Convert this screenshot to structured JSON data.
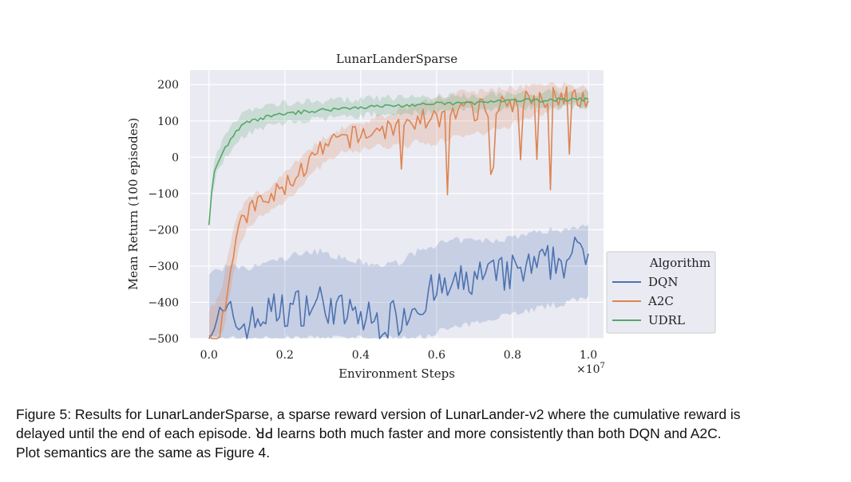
{
  "chart_data": {
    "type": "line",
    "title": "LunarLanderSparse",
    "xlabel": "Environment Steps",
    "x_multiplier_label": "×10",
    "x_multiplier_exp": "7",
    "ylabel": "Mean Return (100 episodes)",
    "xlim": [
      -0.05,
      1.04
    ],
    "ylim": [
      -500,
      240
    ],
    "xticks": [
      0.0,
      0.2,
      0.4,
      0.6,
      0.8,
      1.0
    ],
    "xtick_labels": [
      "0.0",
      "0.2",
      "0.4",
      "0.6",
      "0.8",
      "1.0"
    ],
    "yticks": [
      200,
      100,
      0,
      -100,
      -200,
      -300,
      -400,
      -500
    ],
    "ytick_labels": [
      "200",
      "100",
      "0",
      "−100",
      "−200",
      "−300",
      "−400",
      "−500"
    ],
    "grid": true,
    "legend": {
      "title": "Algorithm",
      "position": "right-outside-bottom"
    },
    "series": [
      {
        "name": "DQN",
        "color": "#4c72b0",
        "x": [
          0.0,
          0.05,
          0.1,
          0.15,
          0.2,
          0.25,
          0.3,
          0.35,
          0.4,
          0.45,
          0.5,
          0.55,
          0.6,
          0.65,
          0.7,
          0.75,
          0.8,
          0.85,
          0.9,
          0.95,
          1.0
        ],
        "y": [
          -460,
          -440,
          -470,
          -430,
          -420,
          -410,
          -400,
          -430,
          -440,
          -460,
          -440,
          -400,
          -370,
          -360,
          -330,
          -330,
          -320,
          -310,
          -290,
          -280,
          -250
        ],
        "band_low": [
          -500,
          -500,
          -500,
          -500,
          -500,
          -500,
          -500,
          -500,
          -500,
          -500,
          -500,
          -500,
          -480,
          -470,
          -460,
          -440,
          -430,
          -420,
          -410,
          -400,
          -380
        ],
        "band_high": [
          -320,
          -300,
          -310,
          -290,
          -280,
          -260,
          -260,
          -280,
          -290,
          -300,
          -290,
          -260,
          -240,
          -230,
          -230,
          -230,
          -220,
          -210,
          -200,
          -200,
          -180
        ]
      },
      {
        "name": "A2C",
        "color": "#dd8452",
        "x": [
          0.0,
          0.02,
          0.04,
          0.06,
          0.08,
          0.1,
          0.12,
          0.15,
          0.2,
          0.25,
          0.3,
          0.35,
          0.4,
          0.45,
          0.5,
          0.55,
          0.6,
          0.65,
          0.7,
          0.75,
          0.8,
          0.85,
          0.9,
          0.95,
          1.0
        ],
        "y": [
          -500,
          -500,
          -420,
          -280,
          -200,
          -160,
          -130,
          -125,
          -80,
          -30,
          20,
          50,
          60,
          75,
          85,
          100,
          110,
          125,
          130,
          140,
          150,
          160,
          170,
          175,
          165
        ],
        "band_low": [
          -500,
          -500,
          -480,
          -350,
          -250,
          -200,
          -170,
          -160,
          -120,
          -70,
          -20,
          10,
          20,
          30,
          30,
          40,
          40,
          60,
          60,
          80,
          90,
          110,
          130,
          145,
          140
        ],
        "band_high": [
          -420,
          -400,
          -330,
          -220,
          -150,
          -120,
          -100,
          -95,
          -40,
          10,
          50,
          80,
          95,
          110,
          130,
          150,
          160,
          175,
          180,
          185,
          190,
          195,
          200,
          200,
          190
        ]
      },
      {
        "name": "UDRL",
        "color": "#55a868",
        "x": [
          0.0,
          0.01,
          0.02,
          0.04,
          0.06,
          0.08,
          0.1,
          0.15,
          0.2,
          0.3,
          0.4,
          0.5,
          0.6,
          0.7,
          0.8,
          0.9,
          1.0
        ],
        "y": [
          -185,
          -60,
          -20,
          20,
          55,
          80,
          95,
          110,
          120,
          130,
          138,
          142,
          147,
          150,
          155,
          158,
          160
        ],
        "band_low": [
          -200,
          -90,
          -45,
          -10,
          25,
          50,
          65,
          85,
          95,
          105,
          115,
          120,
          125,
          130,
          135,
          138,
          140
        ],
        "band_high": [
          -160,
          -30,
          10,
          50,
          90,
          115,
          130,
          140,
          150,
          155,
          160,
          165,
          168,
          170,
          175,
          178,
          180
        ]
      }
    ]
  },
  "caption": {
    "line1": "Figure 5: Results for LunarLanderSparse, a sparse reward version of LunarLander-v2 where the cumulative reward is",
    "line2": "delayed until the end of each episode. ꓤꓒ learns both much faster and more consistently than both DQN and A2C.",
    "line3": "Plot semantics are the same as Figure 4."
  }
}
